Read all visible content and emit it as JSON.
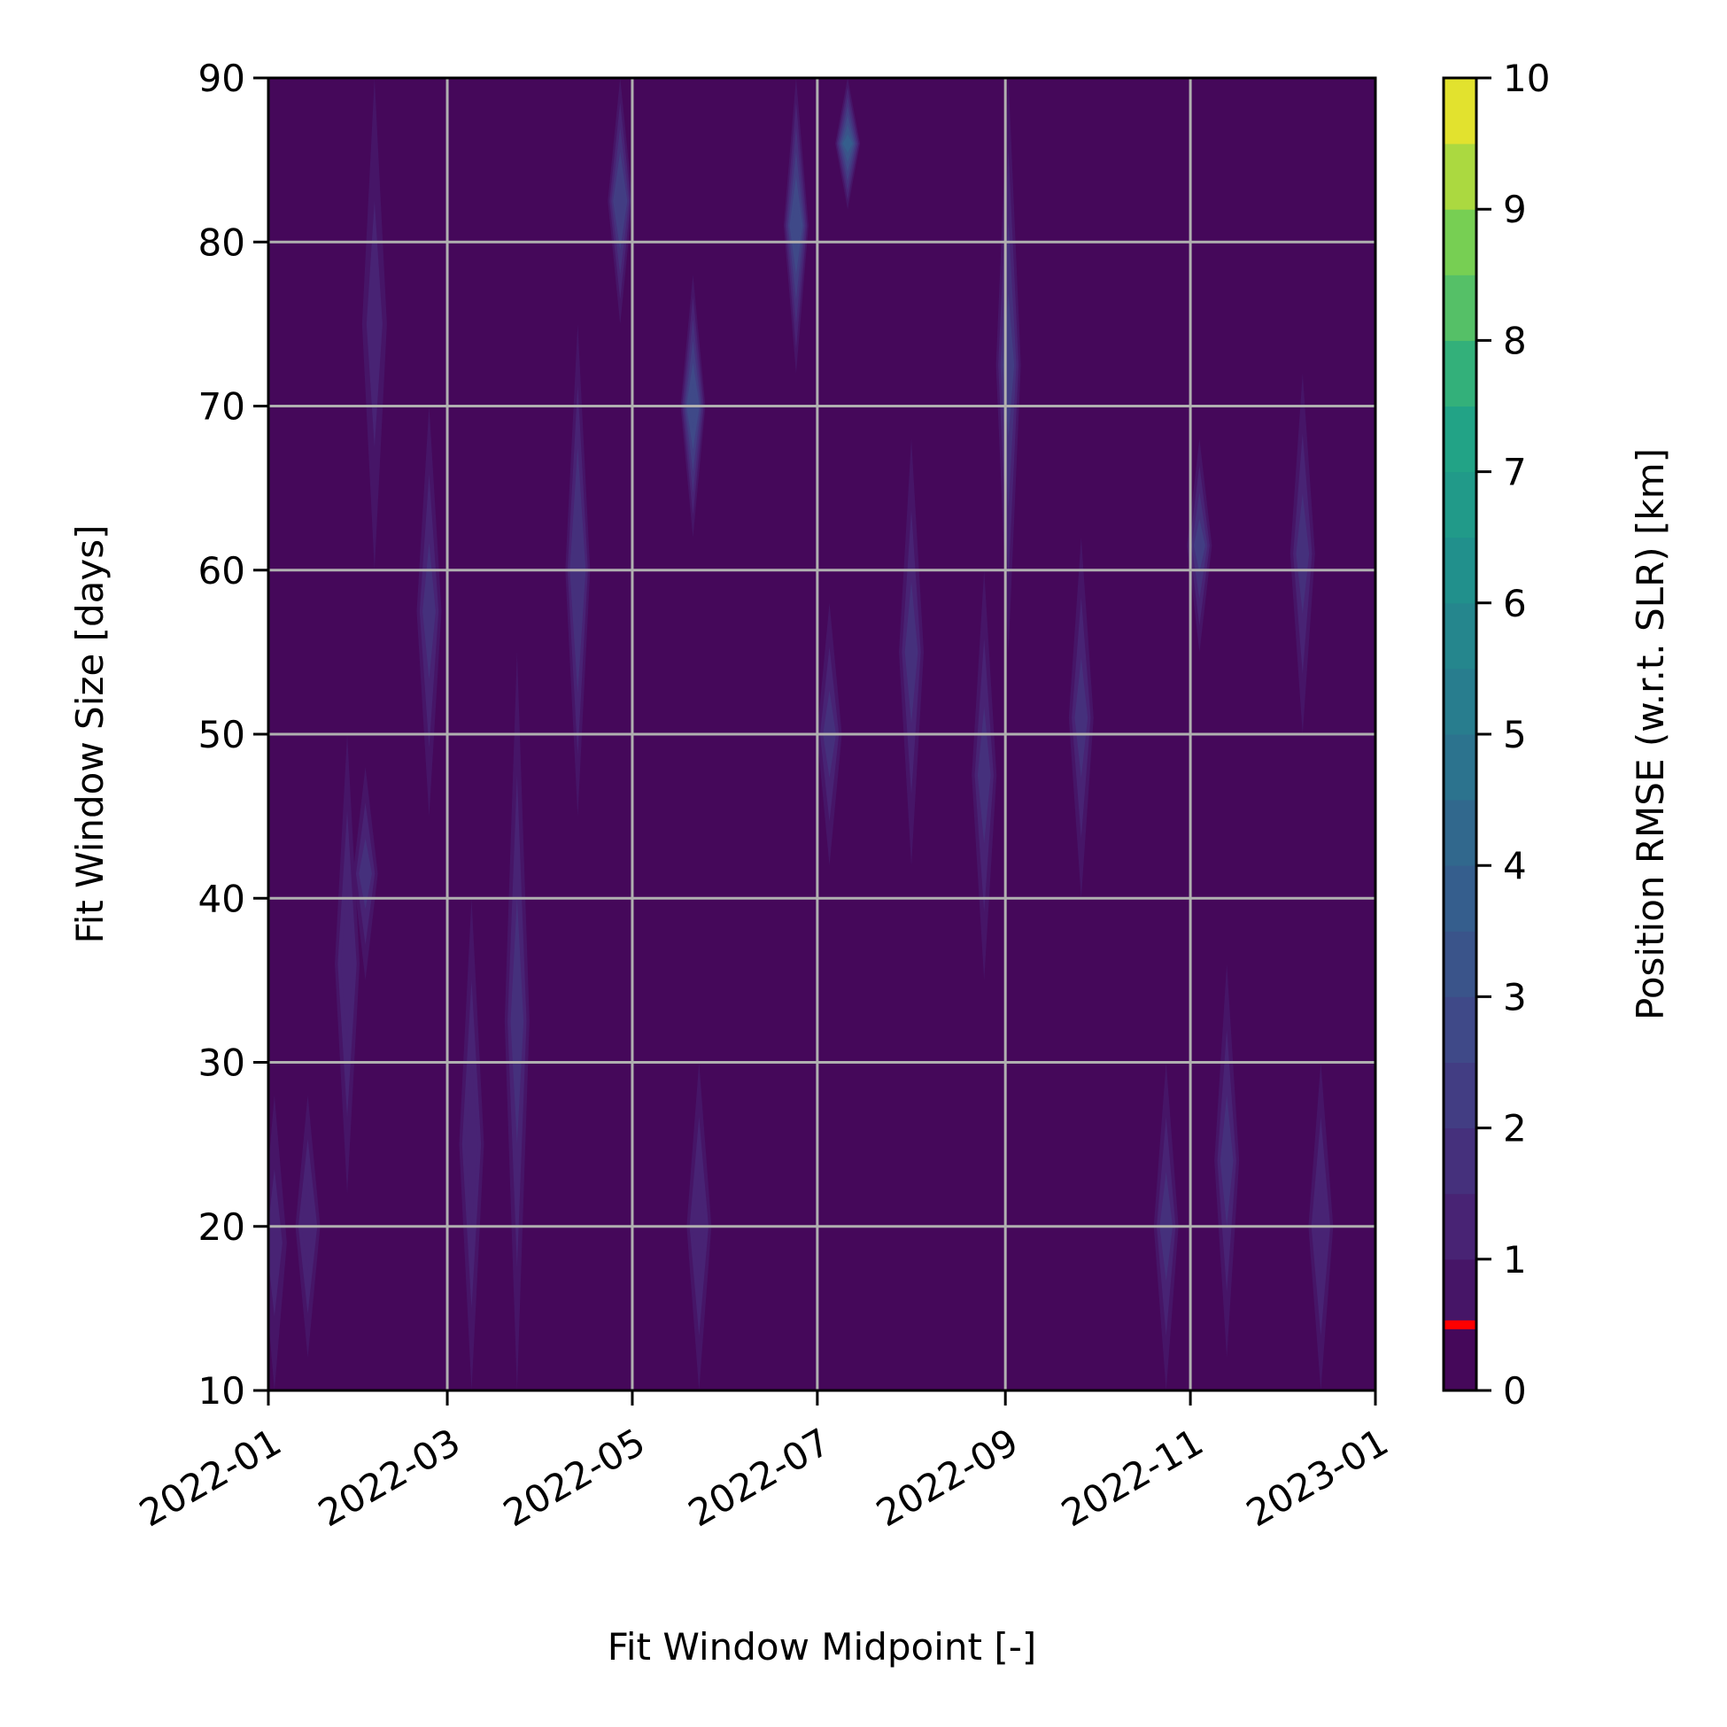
{
  "chart_data": {
    "type": "heatmap",
    "plot_style": "filled contour",
    "xlabel": "Fit Window Midpoint [-]",
    "ylabel": "Fit Window Size [days]",
    "colorbar_label": "Position RMSE (w.r.t. SLR) [km]",
    "x_ticks": [
      "2022-01",
      "2022-03",
      "2022-05",
      "2022-07",
      "2022-09",
      "2022-11",
      "2023-01"
    ],
    "x_range": [
      "2022-01-01",
      "2023-01-01"
    ],
    "y_ticks": [
      10,
      20,
      30,
      40,
      50,
      60,
      70,
      80,
      90
    ],
    "ylim": [
      10,
      90
    ],
    "colorbar_ticks": [
      0,
      1,
      2,
      3,
      4,
      5,
      6,
      7,
      8,
      9,
      10
    ],
    "colorbar_range": [
      0,
      10
    ],
    "colorbar_levels": 20,
    "colorbar_marker": {
      "value": 0.5,
      "color": "#ff0000"
    },
    "colormap": "viridis",
    "grid": true,
    "background_value": 0.3,
    "features": [
      {
        "date": "2022-01-03",
        "size_min": 10,
        "size_max": 28,
        "value": 1.1
      },
      {
        "date": "2022-01-14",
        "size_min": 12,
        "size_max": 28,
        "value": 1.3
      },
      {
        "date": "2022-01-27",
        "size_min": 22,
        "size_max": 50,
        "value": 1.4
      },
      {
        "date": "2022-02-02",
        "size_min": 35,
        "size_max": 48,
        "value": 1.6
      },
      {
        "date": "2022-02-05",
        "size_min": 60,
        "size_max": 90,
        "value": 1.2
      },
      {
        "date": "2022-02-23",
        "size_min": 45,
        "size_max": 70,
        "value": 1.5
      },
      {
        "date": "2022-03-09",
        "size_min": 10,
        "size_max": 40,
        "value": 1.3
      },
      {
        "date": "2022-03-24",
        "size_min": 10,
        "size_max": 55,
        "value": 1.6
      },
      {
        "date": "2022-04-13",
        "size_min": 45,
        "size_max": 75,
        "value": 1.8
      },
      {
        "date": "2022-04-27",
        "size_min": 75,
        "size_max": 90,
        "value": 2.4
      },
      {
        "date": "2022-05-21",
        "size_min": 62,
        "size_max": 78,
        "value": 2.9
      },
      {
        "date": "2022-05-23",
        "size_min": 10,
        "size_max": 30,
        "value": 1.3
      },
      {
        "date": "2022-06-24",
        "size_min": 72,
        "size_max": 90,
        "value": 2.8
      },
      {
        "date": "2022-07-11",
        "size_min": 82,
        "size_max": 90,
        "value": 3.6
      },
      {
        "date": "2022-07-05",
        "size_min": 42,
        "size_max": 58,
        "value": 1.6
      },
      {
        "date": "2022-08-01",
        "size_min": 42,
        "size_max": 68,
        "value": 1.7
      },
      {
        "date": "2022-08-25",
        "size_min": 35,
        "size_max": 60,
        "value": 1.7
      },
      {
        "date": "2022-09-02",
        "size_min": 55,
        "size_max": 90,
        "value": 2.0
      },
      {
        "date": "2022-09-26",
        "size_min": 40,
        "size_max": 62,
        "value": 1.6
      },
      {
        "date": "2022-10-24",
        "size_min": 10,
        "size_max": 30,
        "value": 1.6
      },
      {
        "date": "2022-11-04",
        "size_min": 55,
        "size_max": 68,
        "value": 2.3
      },
      {
        "date": "2022-11-13",
        "size_min": 12,
        "size_max": 36,
        "value": 1.5
      },
      {
        "date": "2022-12-08",
        "size_min": 50,
        "size_max": 72,
        "value": 1.6
      },
      {
        "date": "2022-12-14",
        "size_min": 10,
        "size_max": 30,
        "value": 1.4
      }
    ]
  }
}
